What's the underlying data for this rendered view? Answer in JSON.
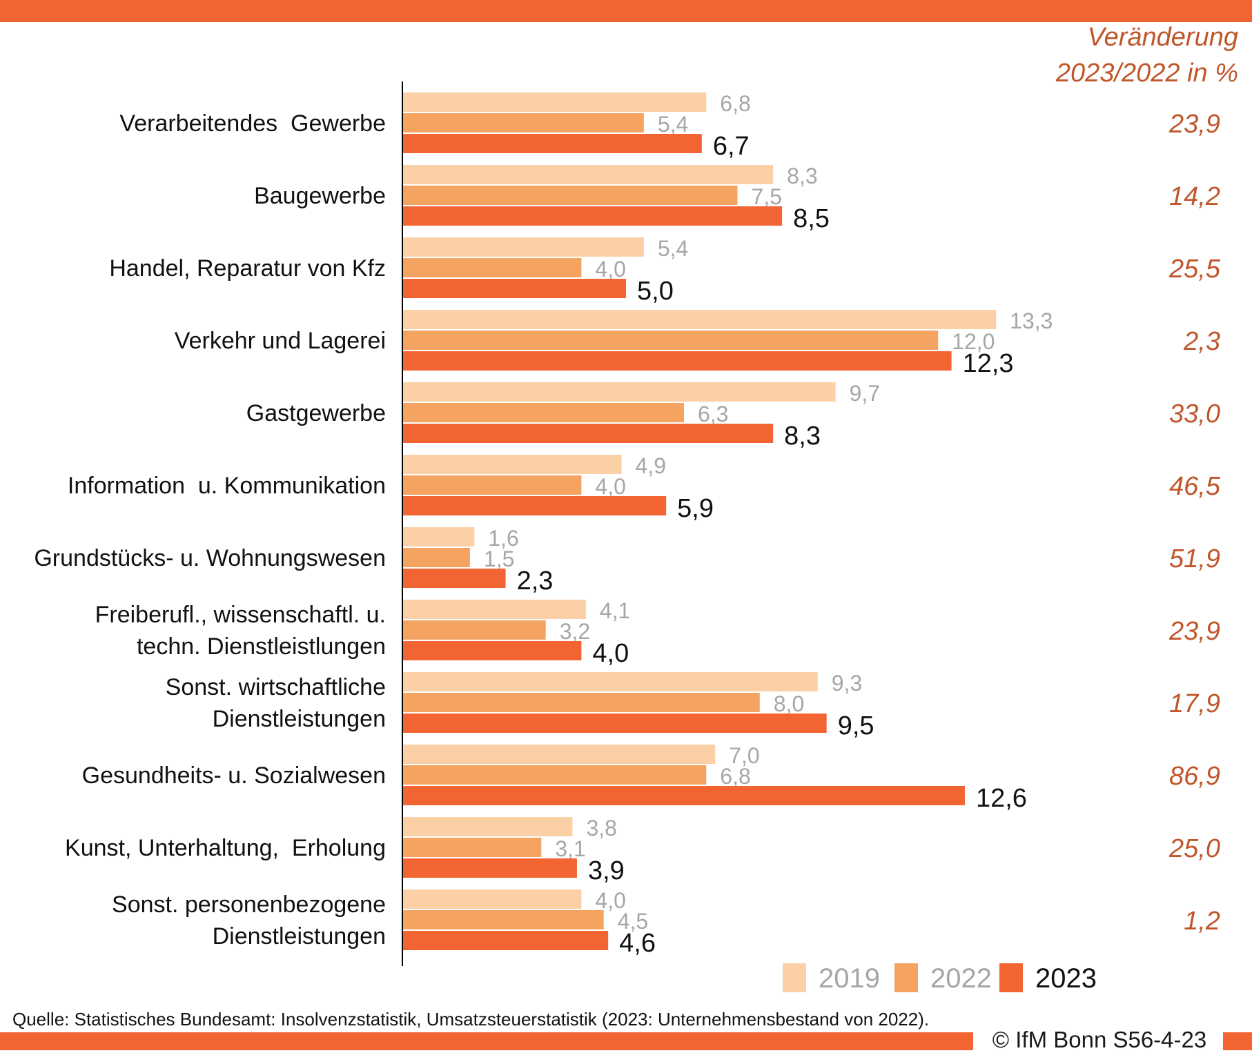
{
  "chart_data": {
    "type": "bar",
    "orientation": "horizontal",
    "title": "",
    "categories": [
      "Verarbeitendes  Gewerbe",
      "Baugewerbe",
      "Handel, Reparatur von Kfz",
      "Verkehr und Lagerei",
      "Gastgewerbe",
      "Information  u. Kommunikation",
      "Grundstücks- u. Wohnungswesen",
      "Freiberufl., wissenschaftl. u.|techn. Dienstleistlungen",
      "Sonst. wirtschaftliche|Dienstleistungen",
      "Gesundheits- u. Sozialwesen",
      "Kunst, Unterhaltung,  Erholung",
      "Sonst. personenbezogene|Dienstleistungen"
    ],
    "series": [
      {
        "name": "2019",
        "color": "#fcd0a6",
        "label_color": "#a6a6a6",
        "values": [
          6.8,
          8.3,
          5.4,
          13.3,
          9.7,
          4.9,
          1.6,
          4.1,
          9.3,
          7.0,
          3.8,
          4.0
        ],
        "labels": [
          "6,8",
          "8,3",
          "5,4",
          "13,3",
          "9,7",
          "4,9",
          "1,6",
          "4,1",
          "9,3",
          "7,0",
          "3,8",
          "4,0"
        ]
      },
      {
        "name": "2022",
        "color": "#f4a460",
        "label_color": "#a6a6a6",
        "values": [
          5.4,
          7.5,
          4.0,
          12.0,
          6.3,
          4.0,
          1.5,
          3.2,
          8.0,
          6.8,
          3.1,
          4.5
        ],
        "labels": [
          "5,4",
          "7,5",
          "4,0",
          "12,0",
          "6,3",
          "4,0",
          "1,5",
          "3,2",
          "8,0",
          "6,8",
          "3,1",
          "4,5"
        ]
      },
      {
        "name": "2023",
        "color": "#f26532",
        "label_color": "#111111",
        "values": [
          6.7,
          8.5,
          5.0,
          12.3,
          8.3,
          5.9,
          2.3,
          4.0,
          9.5,
          12.6,
          3.9,
          4.6
        ],
        "labels": [
          "6,7",
          "8,5",
          "5,0",
          "12,3",
          "8,3",
          "5,9",
          "2,3",
          "4,0",
          "9,5",
          "12,6",
          "3,9",
          "4,6"
        ]
      }
    ],
    "change_values": [
      "23,9",
      "14,2",
      "25,5",
      "2,3",
      "33,0",
      "46,5",
      "51,9",
      "23,9",
      "17,9",
      "86,9",
      "25,0",
      "1,2"
    ],
    "change_color": "#c0562a",
    "xlim": [
      0,
      14
    ],
    "legend_position": "bottom-right",
    "grid": false
  },
  "header": {
    "change_line1": "Veränderung",
    "change_line2": "2023/2022 in %"
  },
  "footer": {
    "source": "Quelle:  Statistisches Bundesamt: Insolvenzstatistik, Umsatzsteuerstatistik (2023: Unternehmensbestand von 2022).",
    "copyright": "© IfM  Bonn S56-4-23"
  },
  "colors": {
    "accent": "#f26532"
  }
}
